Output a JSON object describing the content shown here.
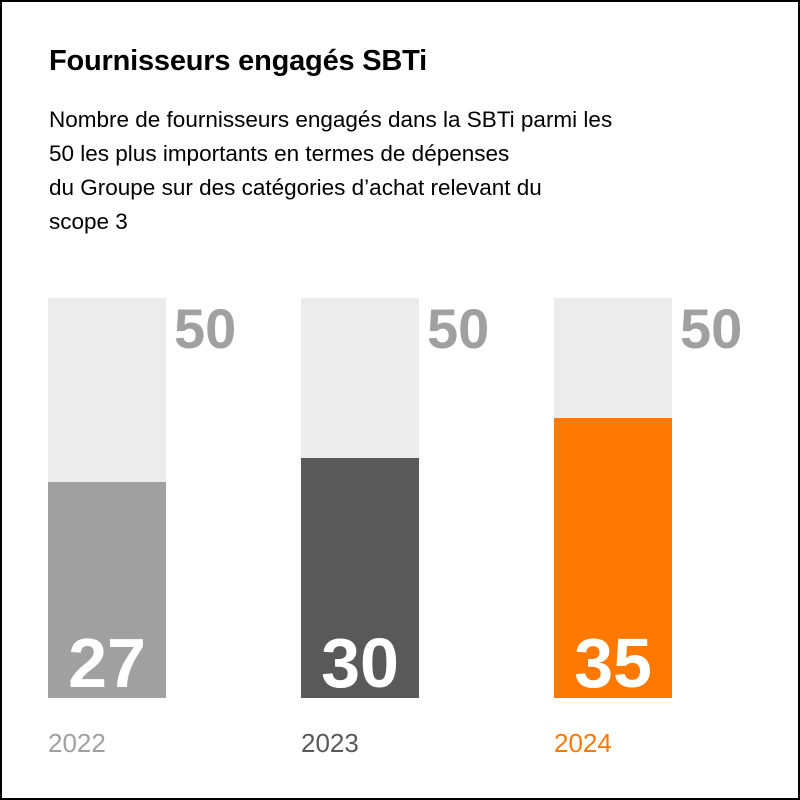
{
  "chart_data": {
    "type": "bar",
    "title": "Fournisseurs engagés SBTi",
    "subtitle_lines": [
      "Nombre de fournisseurs engagés dans la SBTi parmi les",
      "50 les plus importants en termes de dépenses",
      "du Groupe sur des catégories d’achat relevant du",
      "scope 3"
    ],
    "categories": [
      "2022",
      "2023",
      "2024"
    ],
    "values": [
      27,
      30,
      35
    ],
    "total": 50,
    "total_labels": [
      "50",
      "50",
      "50"
    ],
    "value_labels": [
      "27",
      "30",
      "35"
    ],
    "ylim": [
      0,
      50
    ],
    "colors": [
      "#a0a0a0",
      "#595959",
      "#ff7900"
    ],
    "background_color": "#ececec",
    "total_label_color": "#a0a0a0",
    "year_label_colors": [
      "#a0a0a0",
      "#595959",
      "#ff7900"
    ],
    "grid": false
  }
}
